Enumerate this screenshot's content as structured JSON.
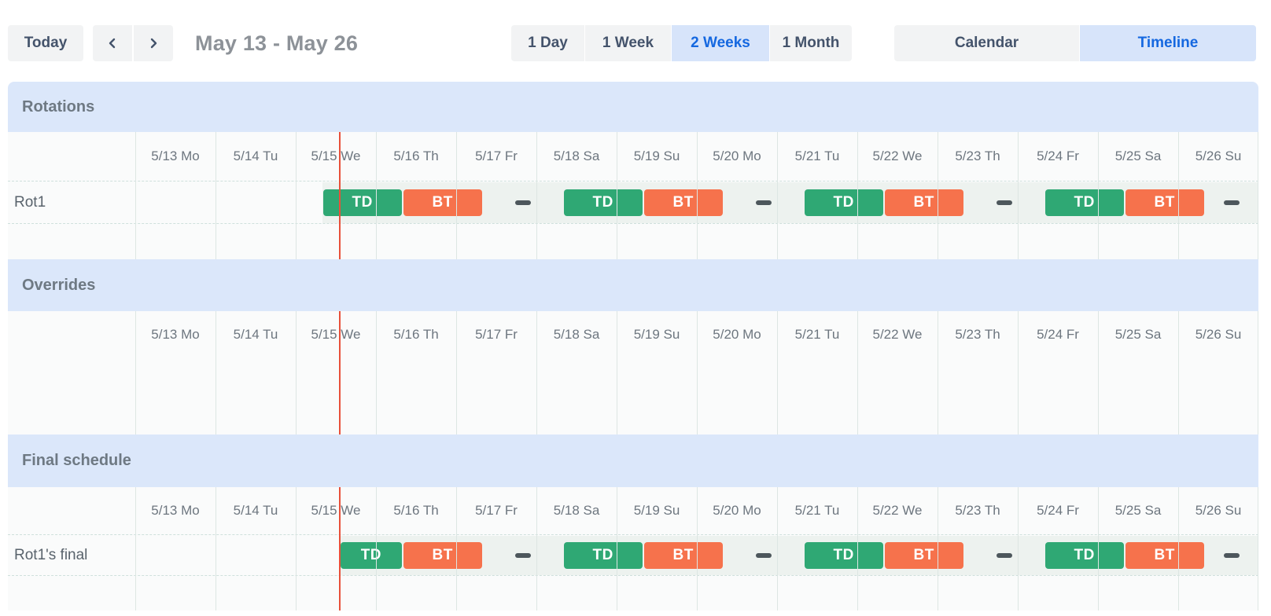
{
  "toolbar": {
    "today_label": "Today",
    "prev_icon": "chevron-left",
    "next_icon": "chevron-right",
    "title": "May 13 - May 26",
    "views": [
      {
        "label": "1 Day",
        "active": false
      },
      {
        "label": "1 Week",
        "active": false
      },
      {
        "label": "2 Weeks",
        "active": true
      },
      {
        "label": "1 Month",
        "active": false
      }
    ],
    "modes": [
      {
        "label": "Calendar",
        "active": false
      },
      {
        "label": "Timeline",
        "active": true
      }
    ]
  },
  "timeline": {
    "days": [
      "5/13 Mo",
      "5/14 Tu",
      "5/15 We",
      "5/16 Th",
      "5/17 Fr",
      "5/18 Sa",
      "5/19 Su",
      "5/20 Mo",
      "5/21 Tu",
      "5/22 We",
      "5/23 Th",
      "5/24 Fr",
      "5/25 Sa",
      "5/26 Su"
    ],
    "now_day": 2.55,
    "sections": [
      {
        "id": "rotations",
        "title": "Rotations",
        "rows": [
          {
            "label": "Rot1",
            "lane_start": 2.33,
            "shifts": [
              {
                "label": "TD",
                "kind": "td",
                "start": 2.33,
                "end": 3.33
              },
              {
                "label": "BT",
                "kind": "bt",
                "start": 3.33,
                "end": 4.33
              },
              {
                "label": "TD",
                "kind": "td",
                "start": 5.33,
                "end": 6.33
              },
              {
                "label": "BT",
                "kind": "bt",
                "start": 6.33,
                "end": 7.33
              },
              {
                "label": "TD",
                "kind": "td",
                "start": 8.33,
                "end": 9.33
              },
              {
                "label": "BT",
                "kind": "bt",
                "start": 9.33,
                "end": 10.33
              },
              {
                "label": "TD",
                "kind": "td",
                "start": 11.33,
                "end": 12.33
              },
              {
                "label": "BT",
                "kind": "bt",
                "start": 12.33,
                "end": 13.33
              }
            ],
            "gaps": [
              {
                "start": 4.33,
                "end": 5.33
              },
              {
                "start": 7.33,
                "end": 8.33
              },
              {
                "start": 10.33,
                "end": 11.33
              },
              {
                "start": 13.33,
                "end": 14
              }
            ]
          }
        ]
      },
      {
        "id": "overrides",
        "title": "Overrides",
        "rows": []
      },
      {
        "id": "final",
        "title": "Final schedule",
        "rows": [
          {
            "label": "Rot1's final",
            "lane_start": 2.55,
            "shifts": [
              {
                "label": "TD",
                "kind": "td",
                "start": 2.55,
                "end": 3.33
              },
              {
                "label": "BT",
                "kind": "bt",
                "start": 3.33,
                "end": 4.33
              },
              {
                "label": "TD",
                "kind": "td",
                "start": 5.33,
                "end": 6.33
              },
              {
                "label": "BT",
                "kind": "bt",
                "start": 6.33,
                "end": 7.33
              },
              {
                "label": "TD",
                "kind": "td",
                "start": 8.33,
                "end": 9.33
              },
              {
                "label": "BT",
                "kind": "bt",
                "start": 9.33,
                "end": 10.33
              },
              {
                "label": "TD",
                "kind": "td",
                "start": 11.33,
                "end": 12.33
              },
              {
                "label": "BT",
                "kind": "bt",
                "start": 12.33,
                "end": 13.33
              }
            ],
            "gaps": [
              {
                "start": 4.33,
                "end": 5.33
              },
              {
                "start": 7.33,
                "end": 8.33
              },
              {
                "start": 10.33,
                "end": 11.33
              },
              {
                "start": 13.33,
                "end": 14
              }
            ]
          }
        ]
      }
    ],
    "colors": {
      "td": "#2fa874",
      "bt": "#f6724c",
      "gap_dash": "#4d575c",
      "now_line": "#e8503a",
      "band": "#dbe7fa",
      "lane": "#edf2ef",
      "view_active_bg": "#d7e4fa",
      "view_active_text": "#1568e0"
    }
  }
}
